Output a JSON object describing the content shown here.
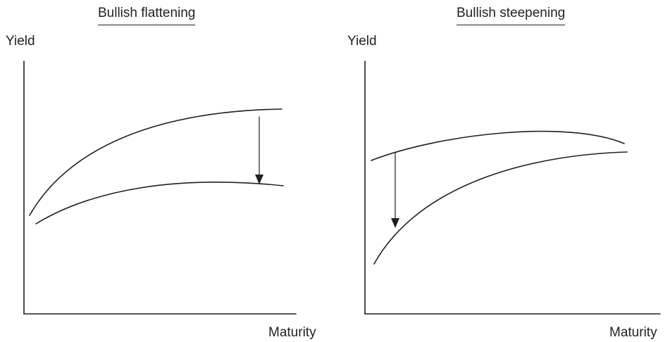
{
  "panels": [
    {
      "title": "Bullish flattening",
      "y_axis_label": "Yield",
      "x_axis_label": "Maturity"
    },
    {
      "title": "Bullish steepening",
      "y_axis_label": "Yield",
      "x_axis_label": "Maturity"
    }
  ]
}
